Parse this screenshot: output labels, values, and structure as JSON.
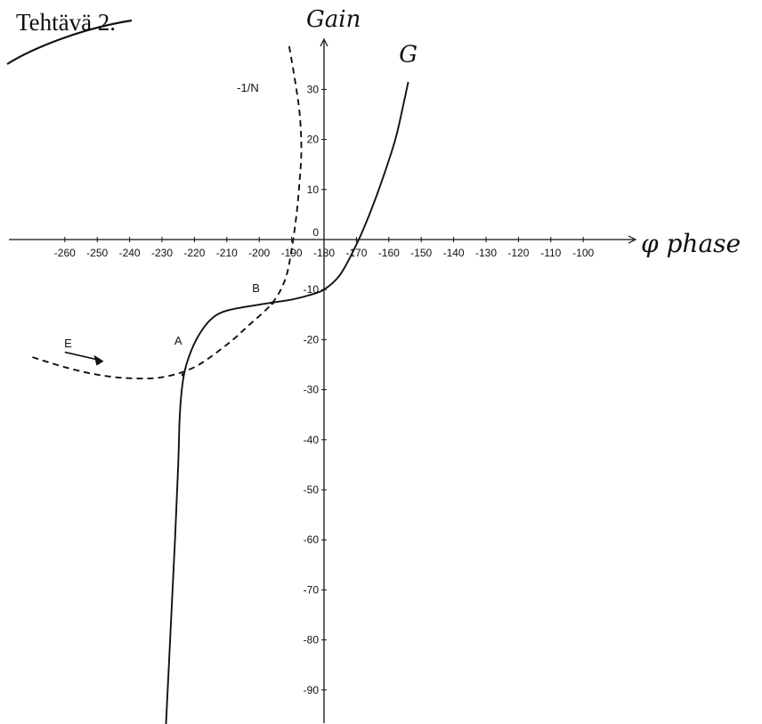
{
  "title": "Tehtävä 2.",
  "chart_data": {
    "type": "line",
    "xlabel": "φ phase",
    "ylabel": "Gain",
    "xlim": [
      -270,
      -90
    ],
    "ylim": [
      -100,
      40
    ],
    "x_ticks": [
      {
        "value": -260,
        "label": "-260"
      },
      {
        "value": -250,
        "label": "-250"
      },
      {
        "value": -240,
        "label": "-240"
      },
      {
        "value": -230,
        "label": "-230"
      },
      {
        "value": -220,
        "label": "-220"
      },
      {
        "value": -210,
        "label": "-210"
      },
      {
        "value": -200,
        "label": "-200"
      },
      {
        "value": -190,
        "label": "-190"
      },
      {
        "value": -180,
        "label": "-180"
      },
      {
        "value": -170,
        "label": "-170"
      },
      {
        "value": -160,
        "label": "-160"
      },
      {
        "value": -150,
        "label": "-150"
      },
      {
        "value": -140,
        "label": "-140"
      },
      {
        "value": -130,
        "label": "-130"
      },
      {
        "value": -120,
        "label": "-120"
      },
      {
        "value": -110,
        "label": "-110"
      },
      {
        "value": -100,
        "label": "-100"
      }
    ],
    "y_ticks": [
      {
        "value": 30,
        "label": "30"
      },
      {
        "value": 20,
        "label": "20"
      },
      {
        "value": 10,
        "label": "10"
      },
      {
        "value": 0,
        "label": "0"
      },
      {
        "value": -10,
        "label": "-10"
      },
      {
        "value": -20,
        "label": "-20"
      },
      {
        "value": -30,
        "label": "-30"
      },
      {
        "value": -40,
        "label": "-40"
      },
      {
        "value": -50,
        "label": "-50"
      },
      {
        "value": -60,
        "label": "-60"
      },
      {
        "value": -70,
        "label": "-70"
      },
      {
        "value": -80,
        "label": "-80"
      },
      {
        "value": -90,
        "label": "-90"
      }
    ],
    "series": [
      {
        "name": "G",
        "style": "solid",
        "color": "#111111",
        "points": [
          [
            -229,
            -100
          ],
          [
            -227.5,
            -80
          ],
          [
            -226,
            -60
          ],
          [
            -225,
            -45
          ],
          [
            -224.5,
            -35
          ],
          [
            -223.5,
            -28
          ],
          [
            -222,
            -24
          ],
          [
            -219,
            -19.5
          ],
          [
            -215,
            -16
          ],
          [
            -210,
            -14.2
          ],
          [
            -200,
            -13
          ],
          [
            -195,
            -12.5
          ],
          [
            -190,
            -12
          ],
          [
            -185,
            -11.2
          ],
          [
            -180,
            -10
          ],
          [
            -175,
            -7
          ],
          [
            -170,
            -1
          ],
          [
            -166,
            5
          ],
          [
            -162,
            12
          ],
          [
            -158,
            20
          ],
          [
            -155.5,
            27
          ],
          [
            -154,
            31.5
          ]
        ]
      },
      {
        "name": "-1/N",
        "style": "dashed",
        "color": "#111111",
        "points": [
          [
            -270,
            -23.5
          ],
          [
            -260,
            -25.5
          ],
          [
            -250,
            -27
          ],
          [
            -240,
            -27.7
          ],
          [
            -230,
            -27.5
          ],
          [
            -220,
            -25.5
          ],
          [
            -210,
            -21
          ],
          [
            -203,
            -17
          ],
          [
            -196,
            -12.7
          ],
          [
            -192,
            -8
          ],
          [
            -190,
            -2
          ],
          [
            -188.5,
            5
          ],
          [
            -187.5,
            12
          ],
          [
            -187,
            18
          ],
          [
            -187.5,
            25
          ],
          [
            -189,
            32
          ],
          [
            -191,
            39.5
          ]
        ]
      }
    ],
    "annotations": [
      {
        "text": "A",
        "x": -225,
        "y": -21
      },
      {
        "text": "B",
        "x": -201,
        "y": -10.5
      },
      {
        "text": "-1/N",
        "x": -203.5,
        "y": 29.5
      },
      {
        "text": "E",
        "x": -259,
        "y": -21.5
      },
      {
        "text": "G",
        "x": -154,
        "y": 35.5
      }
    ],
    "arrow_E": {
      "from": [
        -260,
        -22.5
      ],
      "to": [
        -248,
        -24.3
      ]
    },
    "intersections": [
      {
        "name": "A",
        "x": -223.5,
        "y": -27
      },
      {
        "name": "B",
        "x": -196,
        "y": -12.7
      }
    ]
  }
}
